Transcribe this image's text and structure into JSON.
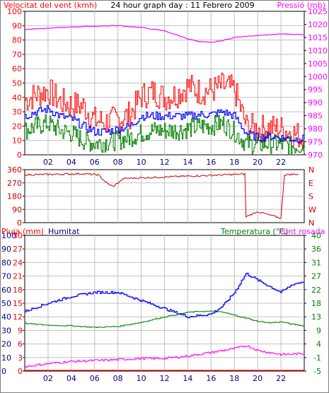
{
  "header": {
    "left": "Velocitat del vent (kmh)",
    "center": "24 hour graph day : 11 Febrero 2009",
    "right": "Pressió (mb)"
  },
  "colors": {
    "frame": "#000000",
    "red": "#ff0000",
    "magenta": "#ff00ff",
    "blue": "#0000ff",
    "green": "#008000",
    "darkred": "#cc0000",
    "navy": "#000080",
    "grid": "#c0c0c0"
  },
  "chart_data": [
    {
      "type": "line",
      "x_ticks": [
        "02",
        "04",
        "06",
        "08",
        "10",
        "12",
        "14",
        "16",
        "18",
        "20",
        "22"
      ],
      "x_range": [
        0,
        24
      ],
      "left_axis": {
        "label": "Velocitat del vent (kmh)",
        "range": [
          0,
          100
        ],
        "ticks": [
          0,
          10,
          20,
          30,
          40,
          50,
          60,
          70,
          80,
          90,
          100
        ]
      },
      "right_axis": {
        "label": "Pressió (mb)",
        "range": [
          970,
          1025
        ],
        "ticks": [
          970,
          975,
          980,
          985,
          990,
          995,
          1000,
          1005,
          1010,
          1015,
          1020,
          1025
        ]
      },
      "series": [
        {
          "color": "red",
          "axis": "left",
          "x": [
            0,
            1,
            2,
            3,
            4,
            5,
            6,
            7,
            8,
            9,
            10,
            11,
            12,
            13,
            14,
            15,
            16,
            17,
            18,
            19,
            20,
            21,
            22,
            23,
            24
          ],
          "y": [
            38,
            42,
            45,
            37,
            35,
            34,
            24,
            23,
            25,
            28,
            41,
            44,
            40,
            42,
            48,
            44,
            45,
            48,
            45,
            20,
            18,
            19,
            18,
            15,
            12
          ]
        },
        {
          "color": "blue",
          "axis": "left",
          "x": [
            0,
            1,
            2,
            3,
            4,
            5,
            6,
            7,
            8,
            9,
            10,
            11,
            12,
            13,
            14,
            15,
            16,
            17,
            18,
            19,
            20,
            21,
            22,
            23,
            24
          ],
          "y": [
            27,
            30,
            32,
            27,
            25,
            20,
            16,
            16,
            18,
            20,
            27,
            27,
            27,
            27,
            27,
            28,
            28,
            30,
            27,
            15,
            12,
            13,
            12,
            11,
            11
          ]
        },
        {
          "color": "green",
          "axis": "left",
          "x": [
            0,
            1,
            2,
            3,
            4,
            5,
            6,
            7,
            8,
            9,
            10,
            11,
            12,
            13,
            14,
            15,
            16,
            17,
            18,
            19,
            20,
            21,
            22,
            23,
            24
          ],
          "y": [
            17,
            20,
            22,
            17,
            15,
            10,
            8,
            9,
            10,
            12,
            15,
            17,
            17,
            17,
            18,
            20,
            20,
            22,
            16,
            8,
            7,
            8,
            7,
            6,
            7
          ]
        },
        {
          "color": "magenta",
          "axis": "right",
          "x": [
            0,
            2,
            4,
            6,
            8,
            10,
            12,
            14,
            15,
            16,
            17,
            18,
            20,
            22,
            24
          ],
          "y": [
            1018,
            1018.5,
            1019,
            1019.3,
            1019.5,
            1018.8,
            1017.5,
            1014.5,
            1013.3,
            1013.1,
            1013.8,
            1015,
            1015.8,
            1016.3,
            1016
          ]
        }
      ]
    },
    {
      "type": "line",
      "x_range": [
        0,
        24
      ],
      "left_axis": {
        "range": [
          0,
          360
        ],
        "ticks": [
          0,
          90,
          180,
          270,
          360
        ]
      },
      "right_axis": {
        "ticks": [
          "N",
          "W",
          "S",
          "E",
          "N"
        ]
      },
      "series": [
        {
          "color": "darkred",
          "axis": "left",
          "x": [
            0,
            5,
            6.3,
            7.1,
            7.6,
            8.5,
            12,
            18.9,
            19.0,
            20,
            22.0,
            22.3,
            23.5
          ],
          "y": [
            325,
            332,
            325,
            265,
            245,
            300,
            310,
            330,
            40,
            75,
            30,
            325,
            330
          ]
        }
      ]
    },
    {
      "type": "line",
      "x_range": [
        0,
        24
      ],
      "header": {
        "a": "Pluja (mm)",
        "b": "Humitat",
        "c": "Temperatura (°C)",
        "d": "Punt rosada"
      },
      "axis_rain": {
        "range": [
          0,
          30
        ],
        "ticks": [
          0,
          3,
          6,
          9,
          12,
          15,
          18,
          21,
          24,
          27,
          30
        ]
      },
      "axis_hum": {
        "range": [
          0,
          100
        ],
        "ticks": [
          0,
          10,
          20,
          30,
          40,
          50,
          60,
          70,
          80,
          90,
          100
        ]
      },
      "axis_temp": {
        "range": [
          -5,
          40
        ],
        "ticks": [
          -5,
          -1,
          4,
          9,
          13,
          18,
          22,
          27,
          31,
          36,
          40
        ]
      },
      "series": [
        {
          "color": "blue",
          "axis": "hum",
          "x": [
            0,
            2,
            4,
            6,
            8,
            10,
            12,
            14,
            16,
            17,
            18,
            19,
            20,
            22,
            23,
            24
          ],
          "y": [
            44,
            50,
            55,
            58,
            58,
            52,
            46,
            40,
            42,
            48,
            58,
            72,
            67,
            58,
            64,
            66
          ]
        },
        {
          "color": "green",
          "axis": "temp",
          "x": [
            0,
            2,
            4,
            6,
            8,
            10,
            12,
            14,
            15,
            16,
            17,
            18,
            19,
            20,
            21,
            22,
            23,
            24
          ],
          "y": [
            10.8,
            10.2,
            10.0,
            9.5,
            9.8,
            11.2,
            13.0,
            14.5,
            14.8,
            14.8,
            14.5,
            13.5,
            12.5,
            11.5,
            11.0,
            11.3,
            10.5,
            10.0
          ]
        },
        {
          "color": "magenta",
          "axis": "temp",
          "x": [
            0,
            2,
            4,
            6,
            8,
            10,
            12,
            14,
            16,
            18,
            19,
            20,
            22,
            24
          ],
          "y": [
            -3.5,
            -2.5,
            -1.8,
            -1.5,
            -1.2,
            -0.8,
            -0.8,
            0.0,
            1.2,
            2.5,
            3.5,
            1.8,
            0.5,
            0.8
          ]
        },
        {
          "color": "red",
          "axis": "rain",
          "x": [
            0,
            24
          ],
          "y": [
            0,
            0
          ]
        }
      ]
    }
  ]
}
